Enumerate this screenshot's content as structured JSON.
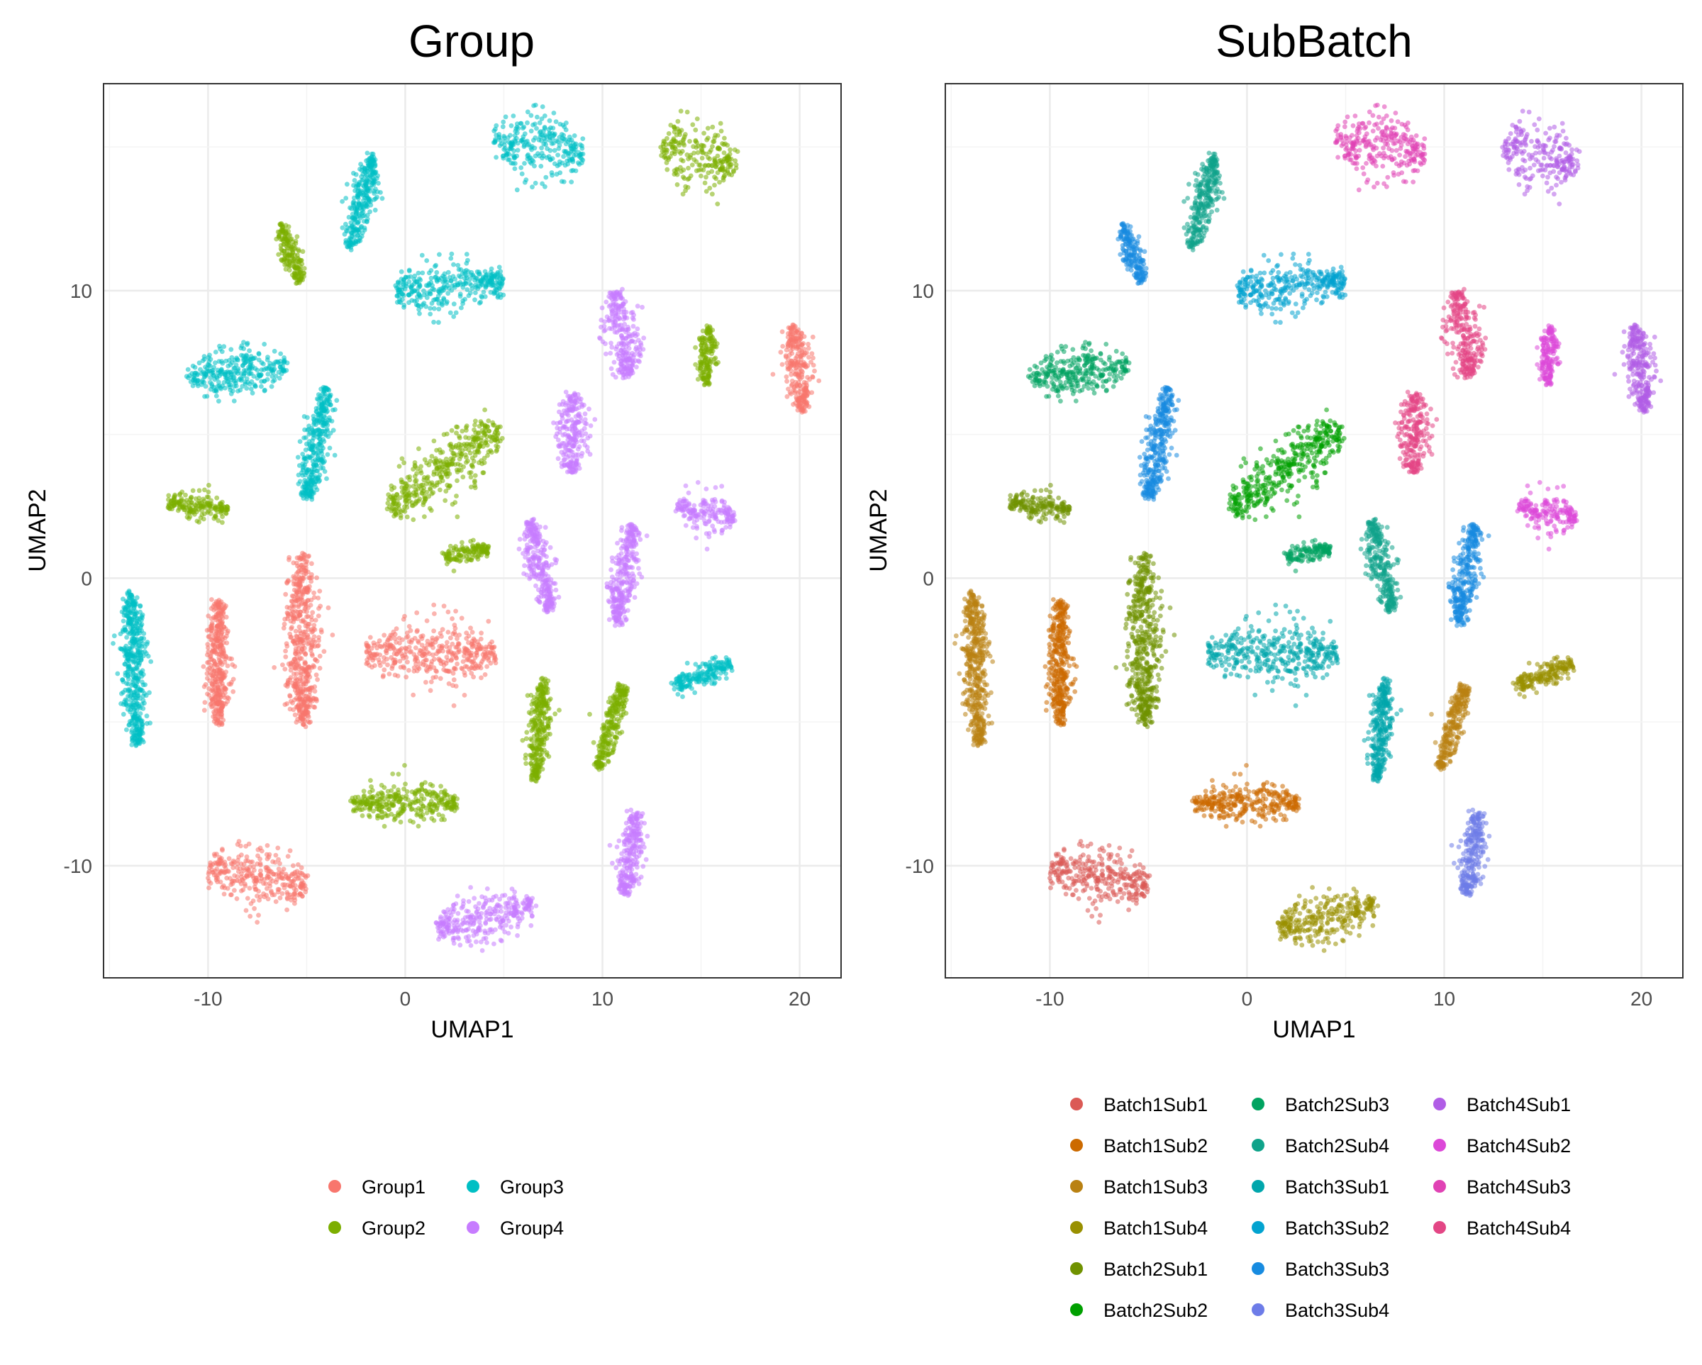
{
  "chart_data": [
    {
      "type": "scatter",
      "title": "Group",
      "xlabel": "UMAP1",
      "ylabel": "UMAP2",
      "xlim": [
        -15.3,
        22.1
      ],
      "ylim": [
        -13.9,
        17.2
      ],
      "xticks": [
        -10,
        0,
        10,
        20
      ],
      "yticks": [
        -10,
        0,
        10
      ],
      "grid": true,
      "legend_position": "bottom",
      "legend": [
        {
          "name": "Group1",
          "color": "#F8766D"
        },
        {
          "name": "Group2",
          "color": "#7CAE00"
        },
        {
          "name": "Group3",
          "color": "#00BFC4"
        },
        {
          "name": "Group4",
          "color": "#C77CFF"
        }
      ],
      "clusters": [
        {
          "series": "Group1",
          "x": [
            -10,
            -5
          ],
          "y": [
            -10,
            -10.8
          ],
          "spread": 0.5
        },
        {
          "series": "Group1",
          "x": [
            -2,
            4.6
          ],
          "y": [
            -2.6,
            -2.6
          ],
          "spread": 0.5
        },
        {
          "series": "Group1",
          "x": [
            -9.5,
            -9.5
          ],
          "y": [
            -0.8,
            -5.1
          ],
          "spread": 0.28
        },
        {
          "series": "Group1",
          "x": [
            -5.2,
            -5.2
          ],
          "y": [
            0.8,
            -5.1
          ],
          "spread": 0.42
        },
        {
          "series": "Group1",
          "x": [
            19.6,
            20.2
          ],
          "y": [
            8.8,
            5.8
          ],
          "spread": 0.33
        },
        {
          "series": "Group2",
          "x": [
            -2.7,
            2.6
          ],
          "y": [
            -7.8,
            -7.8
          ],
          "spread": 0.32
        },
        {
          "series": "Group2",
          "x": [
            2,
            4.2
          ],
          "y": [
            0.75,
            1
          ],
          "spread": 0.2
        },
        {
          "series": "Group2",
          "x": [
            -12,
            -9
          ],
          "y": [
            2.6,
            2.4
          ],
          "spread": 0.2
        },
        {
          "series": "Group2",
          "x": [
            -0.8,
            4.8
          ],
          "y": [
            2.5,
            5.1
          ],
          "spread": 0.5
        },
        {
          "series": "Group2",
          "x": [
            -6.3,
            -5.3
          ],
          "y": [
            12.3,
            10.3
          ],
          "spread": 0.22
        },
        {
          "series": "Group2",
          "x": [
            15.4,
            15.2
          ],
          "y": [
            8.7,
            6.8
          ],
          "spread": 0.22
        },
        {
          "series": "Group2",
          "x": [
            13,
            16.8
          ],
          "y": [
            15,
            14.4
          ],
          "spread": 0.55
        },
        {
          "series": "Group2",
          "x": [
            7,
            6.6
          ],
          "y": [
            -3.5,
            -7
          ],
          "spread": 0.26
        },
        {
          "series": "Group2",
          "x": [
            11.1,
            9.8
          ],
          "y": [
            -3.7,
            -6.6
          ],
          "spread": 0.26
        },
        {
          "series": "Group3",
          "x": [
            -13.9,
            -13.6
          ],
          "y": [
            -0.5,
            -5.8
          ],
          "spread": 0.32
        },
        {
          "series": "Group3",
          "x": [
            -11,
            -6
          ],
          "y": [
            7,
            7.4
          ],
          "spread": 0.38
        },
        {
          "series": "Group3",
          "x": [
            -4,
            -5
          ],
          "y": [
            6.6,
            2.8
          ],
          "spread": 0.32
        },
        {
          "series": "Group3",
          "x": [
            -1.6,
            -2.8
          ],
          "y": [
            14.7,
            11.5
          ],
          "spread": 0.28
        },
        {
          "series": "Group3",
          "x": [
            -0.5,
            5
          ],
          "y": [
            10,
            10.3
          ],
          "spread": 0.42
        },
        {
          "series": "Group3",
          "x": [
            4.5,
            9
          ],
          "y": [
            15.3,
            14.8
          ],
          "spread": 0.5
        },
        {
          "series": "Group3",
          "x": [
            13.6,
            16.5
          ],
          "y": [
            -3.8,
            -3
          ],
          "spread": 0.22
        },
        {
          "series": "Group4",
          "x": [
            10.7,
            11.3
          ],
          "y": [
            10,
            7
          ],
          "spread": 0.42
        },
        {
          "series": "Group4",
          "x": [
            8.5,
            8.5
          ],
          "y": [
            6.4,
            3.7
          ],
          "spread": 0.42
        },
        {
          "series": "Group4",
          "x": [
            13.8,
            16.7
          ],
          "y": [
            2.45,
            2.1
          ],
          "spread": 0.3
        },
        {
          "series": "Group4",
          "x": [
            6.3,
            7.3
          ],
          "y": [
            2,
            -1.1
          ],
          "spread": 0.3
        },
        {
          "series": "Group4",
          "x": [
            11.6,
            10.7
          ],
          "y": [
            1.9,
            -1.6
          ],
          "spread": 0.3
        },
        {
          "series": "Group4",
          "x": [
            11.7,
            11.1
          ],
          "y": [
            -8.1,
            -11
          ],
          "spread": 0.3
        },
        {
          "series": "Group4",
          "x": [
            1.6,
            6.5
          ],
          "y": [
            -12.2,
            -11.4
          ],
          "spread": 0.42
        }
      ]
    },
    {
      "type": "scatter",
      "title": "SubBatch",
      "xlabel": "UMAP1",
      "ylabel": "UMAP2",
      "xlim": [
        -15.3,
        22.1
      ],
      "ylim": [
        -13.9,
        17.2
      ],
      "xticks": [
        -10,
        0,
        10,
        20
      ],
      "yticks": [
        -10,
        0,
        10
      ],
      "grid": true,
      "legend_position": "bottom",
      "legend": [
        {
          "name": "Batch1Sub1",
          "color": "#DB5A55"
        },
        {
          "name": "Batch1Sub2",
          "color": "#CC6A00"
        },
        {
          "name": "Batch1Sub3",
          "color": "#B98112"
        },
        {
          "name": "Batch1Sub4",
          "color": "#999000"
        },
        {
          "name": "Batch2Sub1",
          "color": "#709200"
        },
        {
          "name": "Batch2Sub2",
          "color": "#00A000"
        },
        {
          "name": "Batch2Sub3",
          "color": "#00A360"
        },
        {
          "name": "Batch2Sub4",
          "color": "#0FA38A"
        },
        {
          "name": "Batch3Sub1",
          "color": "#00A6AC"
        },
        {
          "name": "Batch3Sub2",
          "color": "#02A3D0"
        },
        {
          "name": "Batch3Sub3",
          "color": "#178BE0"
        },
        {
          "name": "Batch3Sub4",
          "color": "#6D7CE8"
        },
        {
          "name": "Batch4Sub1",
          "color": "#B05DE6"
        },
        {
          "name": "Batch4Sub2",
          "color": "#DC48D8"
        },
        {
          "name": "Batch4Sub3",
          "color": "#E042B4"
        },
        {
          "name": "Batch4Sub4",
          "color": "#E34685"
        }
      ],
      "clusters": [
        {
          "series": "Batch1Sub1",
          "x": [
            -10,
            -5
          ],
          "y": [
            -10,
            -10.8
          ],
          "spread": 0.5
        },
        {
          "series": "Batch3Sub1",
          "x": [
            -2,
            4.6
          ],
          "y": [
            -2.6,
            -2.6
          ],
          "spread": 0.5
        },
        {
          "series": "Batch1Sub2",
          "x": [
            -9.5,
            -9.5
          ],
          "y": [
            -0.8,
            -5.1
          ],
          "spread": 0.28
        },
        {
          "series": "Batch2Sub1",
          "x": [
            -5.2,
            -5.2
          ],
          "y": [
            0.8,
            -5.1
          ],
          "spread": 0.42
        },
        {
          "series": "Batch4Sub1",
          "x": [
            19.6,
            20.2
          ],
          "y": [
            8.8,
            5.8
          ],
          "spread": 0.33
        },
        {
          "series": "Batch1Sub2",
          "x": [
            -2.7,
            2.6
          ],
          "y": [
            -7.8,
            -7.8
          ],
          "spread": 0.32
        },
        {
          "series": "Batch2Sub3",
          "x": [
            2,
            4.2
          ],
          "y": [
            0.75,
            1
          ],
          "spread": 0.2
        },
        {
          "series": "Batch2Sub1",
          "x": [
            -12,
            -9
          ],
          "y": [
            2.6,
            2.4
          ],
          "spread": 0.2
        },
        {
          "series": "Batch2Sub2",
          "x": [
            -0.8,
            4.8
          ],
          "y": [
            2.5,
            5.1
          ],
          "spread": 0.5
        },
        {
          "series": "Batch3Sub3",
          "x": [
            -6.3,
            -5.3
          ],
          "y": [
            12.3,
            10.3
          ],
          "spread": 0.22
        },
        {
          "series": "Batch4Sub2",
          "x": [
            15.4,
            15.2
          ],
          "y": [
            8.7,
            6.8
          ],
          "spread": 0.22
        },
        {
          "series": "Batch4Sub1",
          "x": [
            13,
            16.8
          ],
          "y": [
            15,
            14.4
          ],
          "spread": 0.55
        },
        {
          "series": "Batch3Sub1",
          "x": [
            7,
            6.6
          ],
          "y": [
            -3.5,
            -7
          ],
          "spread": 0.26
        },
        {
          "series": "Batch1Sub3",
          "x": [
            11.1,
            9.8
          ],
          "y": [
            -3.7,
            -6.6
          ],
          "spread": 0.26
        },
        {
          "series": "Batch1Sub3",
          "x": [
            -13.9,
            -13.6
          ],
          "y": [
            -0.5,
            -5.8
          ],
          "spread": 0.32
        },
        {
          "series": "Batch2Sub3",
          "x": [
            -11,
            -6
          ],
          "y": [
            7,
            7.4
          ],
          "spread": 0.38
        },
        {
          "series": "Batch3Sub3",
          "x": [
            -4,
            -5
          ],
          "y": [
            6.6,
            2.8
          ],
          "spread": 0.32
        },
        {
          "series": "Batch2Sub4",
          "x": [
            -1.6,
            -2.8
          ],
          "y": [
            14.7,
            11.5
          ],
          "spread": 0.28
        },
        {
          "series": "Batch3Sub2",
          "x": [
            -0.5,
            5
          ],
          "y": [
            10,
            10.3
          ],
          "spread": 0.42
        },
        {
          "series": "Batch4Sub3",
          "x": [
            4.5,
            9
          ],
          "y": [
            15.3,
            14.8
          ],
          "spread": 0.5
        },
        {
          "series": "Batch1Sub4",
          "x": [
            13.6,
            16.5
          ],
          "y": [
            -3.8,
            -3
          ],
          "spread": 0.22
        },
        {
          "series": "Batch4Sub4",
          "x": [
            10.7,
            11.3
          ],
          "y": [
            10,
            7
          ],
          "spread": 0.42
        },
        {
          "series": "Batch4Sub4",
          "x": [
            8.5,
            8.5
          ],
          "y": [
            6.4,
            3.7
          ],
          "spread": 0.42
        },
        {
          "series": "Batch4Sub2",
          "x": [
            13.8,
            16.7
          ],
          "y": [
            2.45,
            2.1
          ],
          "spread": 0.3
        },
        {
          "series": "Batch2Sub4",
          "x": [
            6.3,
            7.3
          ],
          "y": [
            2,
            -1.1
          ],
          "spread": 0.3
        },
        {
          "series": "Batch3Sub3",
          "x": [
            11.6,
            10.7
          ],
          "y": [
            1.9,
            -1.6
          ],
          "spread": 0.3
        },
        {
          "series": "Batch3Sub4",
          "x": [
            11.7,
            11.1
          ],
          "y": [
            -8.1,
            -11
          ],
          "spread": 0.3
        },
        {
          "series": "Batch1Sub4",
          "x": [
            1.6,
            6.5
          ],
          "y": [
            -12.2,
            -11.4
          ],
          "spread": 0.42
        }
      ]
    }
  ]
}
